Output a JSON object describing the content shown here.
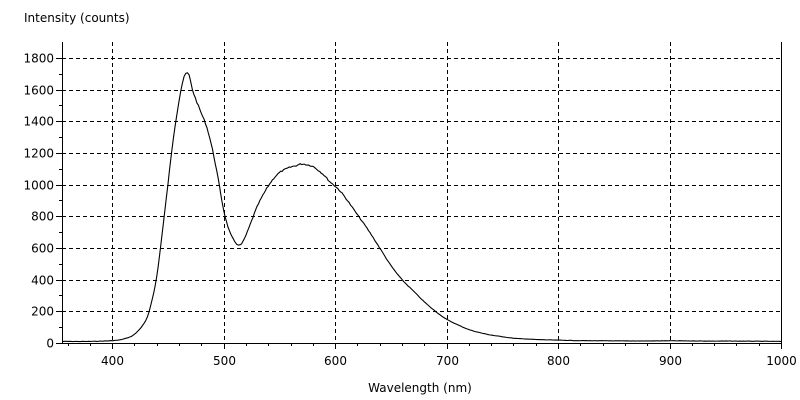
{
  "chart_data": {
    "type": "line",
    "title": "",
    "ylabel": "Intensity (counts)",
    "xlabel": "Wavelength (nm)",
    "xlim": [
      355,
      1000
    ],
    "ylim": [
      0,
      1900
    ],
    "xticks": [
      400,
      500,
      600,
      700,
      800,
      900,
      1000
    ],
    "yticks": [
      0,
      200,
      400,
      600,
      800,
      1000,
      1200,
      1400,
      1600,
      1800
    ],
    "grid": true,
    "legend": "none",
    "line_color": "#000000",
    "grid_color": "#000000",
    "series": [
      {
        "x": [
          355,
          380,
          400,
          410,
          420,
          430,
          435,
          440,
          445,
          450,
          455,
          460,
          463,
          466,
          469,
          472,
          476,
          480,
          485,
          490,
          495,
          500,
          505,
          510,
          513,
          516,
          520,
          525,
          530,
          535,
          540,
          545,
          550,
          555,
          560,
          565,
          570,
          575,
          580,
          585,
          590,
          595,
          600,
          605,
          610,
          620,
          630,
          640,
          650,
          660,
          670,
          680,
          690,
          700,
          710,
          720,
          730,
          740,
          750,
          760,
          770,
          780,
          790,
          800,
          820,
          840,
          860,
          880,
          900,
          920,
          940,
          960,
          980,
          1000
        ],
        "y": [
          10,
          10,
          15,
          25,
          55,
          140,
          250,
          420,
          700,
          1000,
          1300,
          1530,
          1640,
          1700,
          1690,
          1600,
          1520,
          1450,
          1360,
          1220,
          1040,
          840,
          710,
          640,
          620,
          625,
          680,
          770,
          860,
          930,
          990,
          1040,
          1075,
          1095,
          1110,
          1120,
          1130,
          1125,
          1115,
          1090,
          1060,
          1020,
          990,
          955,
          910,
          810,
          710,
          600,
          490,
          400,
          330,
          260,
          200,
          150,
          115,
          85,
          65,
          50,
          40,
          30,
          26,
          22,
          20,
          18,
          15,
          14,
          13,
          13,
          14,
          13,
          12,
          12,
          11,
          10
        ]
      }
    ]
  }
}
